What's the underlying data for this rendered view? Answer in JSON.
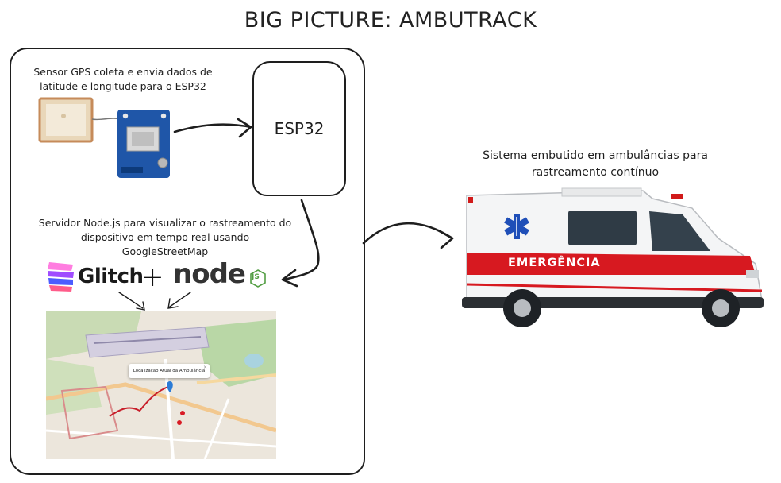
{
  "title": "BIG PICTURE: AMBUTRACK",
  "gps_caption": "Sensor GPS coleta e envia dados de latitude e longitude para o ESP32",
  "esp32_label": "ESP32",
  "server_caption": "Servidor Node.js para visualizar o rastreamento do dispositivo em tempo real usando GoogleStreetMap",
  "ambulance_caption": "Sistema embutido em ambulâncias para rastreamento contínuo",
  "logos": {
    "glitch": "Glitch",
    "plus": "+",
    "node": "node",
    "js": "JS"
  },
  "map_popup": {
    "text": "Localização Atual da Ambulância",
    "close": "×"
  },
  "ambulance_text": "EMERGÊNCIA"
}
